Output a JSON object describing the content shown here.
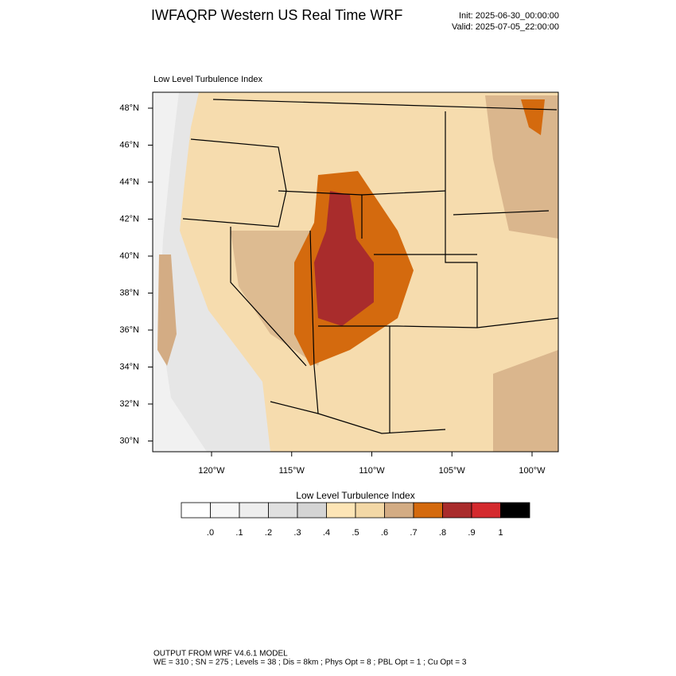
{
  "header": {
    "title": "IWFAQRP Western US Real Time WRF",
    "init": "Init: 2025-06-30_00:00:00",
    "valid": "Valid: 2025-07-05_22:00:00"
  },
  "map": {
    "subtitle": "Low Level Turbulence Index",
    "lat_labels": [
      "48°N",
      "46°N",
      "44°N",
      "42°N",
      "40°N",
      "38°N",
      "36°N",
      "34°N",
      "32°N",
      "30°N"
    ],
    "lon_labels": [
      "120°W",
      "115°W",
      "110°W",
      "105°W",
      "100°W"
    ]
  },
  "colorbar": {
    "title": "Low Level Turbulence Index",
    "colors": [
      "#ffffff",
      "#f7f7f7",
      "#eeeeee",
      "#e0e0e0",
      "#d4d4d4",
      "#fde5b6",
      "#f3d8a6",
      "#d3ac84",
      "#d46a0e",
      "#a92c2c",
      "#d42a2e",
      "#000000"
    ],
    "labels": [
      ".0",
      ".1",
      ".2",
      ".3",
      ".4",
      ".5",
      ".6",
      ".7",
      ".8",
      ".9",
      "1"
    ]
  },
  "footer": {
    "line1": "OUTPUT FROM WRF V4.6.1 MODEL",
    "line2": "WE = 310 ; SN = 275 ; Levels = 38 ; Dis = 8km ; Phys Opt = 8 ; PBL Opt = 1 ; Cu Opt = 3"
  }
}
